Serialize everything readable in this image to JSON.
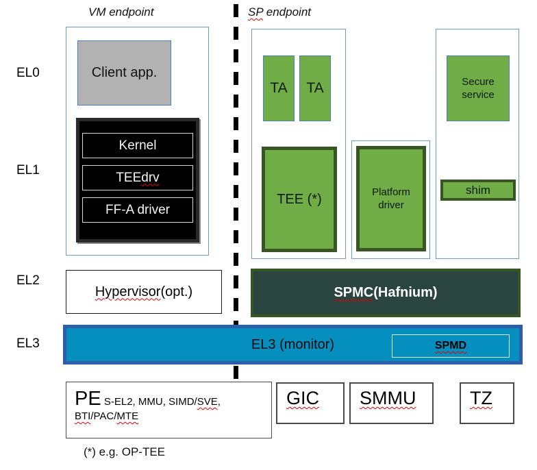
{
  "labels": {
    "el0": "EL0",
    "el1": "EL1",
    "el2": "EL2",
    "el3": "EL3"
  },
  "headers": {
    "vm": "VM endpoint",
    "sp_prefix": "SP",
    "sp_suffix": " endpoint"
  },
  "vm": {
    "client_app": "Client app.",
    "kernel_stack": {
      "kernel": "Kernel",
      "tee_drv_prefix": "TEE ",
      "tee_drv_wavy": "drv",
      "ffa_driver": "FF-A driver"
    }
  },
  "sp": {
    "ta1": "TA",
    "ta2": "TA",
    "tee": "TEE (*)",
    "platform_driver": "Platform driver",
    "secure_service": "Secure service",
    "shim": "shim"
  },
  "el2": {
    "hypervisor_wavy": "Hypervisor",
    "hypervisor_suffix": " (opt.)",
    "spmc_wavy": "SPMC",
    "spmc_suffix": " (Hafnium)"
  },
  "el3": {
    "monitor": "EL3 (monitor)",
    "spmd": "SPMD"
  },
  "hardware": {
    "pe_title": "PE",
    "pe_seg1": " S-EL2, MMU, SIMD/",
    "pe_seg2": "SVE",
    "pe_seg3": ",",
    "pe_seg4": "BTI",
    "pe_seg5": "/PAC/",
    "pe_seg6": "MTE",
    "gic": "GIC",
    "smmu": "SMMU",
    "tz": "TZ"
  },
  "footnote": "(*) e.g. OP-TEE",
  "colors": {
    "green": "#70ad47",
    "dkgreen": "#375623",
    "boxblue": "#4d7ebf",
    "ctrblue": "#6e9ac8",
    "spmcfill": "#2a453f",
    "el3fill": "#058fbe",
    "el3border": "#2c5fa8",
    "gray": "#b2b2b2",
    "wavy": "#e00000"
  }
}
